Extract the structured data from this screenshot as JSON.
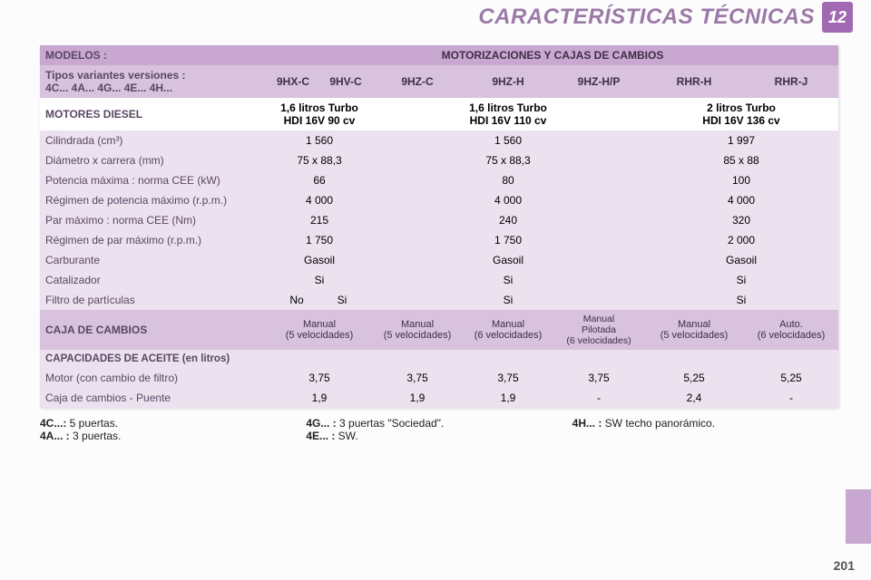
{
  "badge": "12",
  "title": "CARACTERÍSTICAS TÉCNICAS",
  "pagenum": "201",
  "cols": {
    "modelos": "MODELOS :",
    "motorizaciones": "MOTORIZACIONES Y CAJAS DE CAMBIOS",
    "tipos_label": "Tipos variantes versiones :\n4C... 4A... 4G... 4E... 4H...",
    "c1": "9HX-C",
    "c2": "9HV-C",
    "c3": "9HZ-C",
    "c4": "9HZ-H",
    "c5": "9HZ-H/P",
    "c6": "RHR-H",
    "c7": "RHR-J"
  },
  "engines": {
    "label": "MOTORES DIESEL",
    "e1": "1,6 litros Turbo\nHDI 16V 90 cv",
    "e2": "1,6 litros Turbo\nHDI 16V 110 cv",
    "e3": "2 litros Turbo\nHDI 16V 136 cv"
  },
  "rows": [
    {
      "label": "Cilindrada (cm³)",
      "a": "1 560",
      "b": "1 560",
      "c": "1 997"
    },
    {
      "label": "Diámetro x carrera (mm)",
      "a": "75 x 88,3",
      "b": "75 x 88,3",
      "c": "85 x 88"
    },
    {
      "label": "Potencia máxima : norma CEE (kW)",
      "a": "66",
      "b": "80",
      "c": "100"
    },
    {
      "label": "Régimen de potencia máximo (r.p.m.)",
      "a": "4 000",
      "b": "4 000",
      "c": "4 000"
    },
    {
      "label": "Par máximo : norma CEE (Nm)",
      "a": "215",
      "b": "240",
      "c": "320"
    },
    {
      "label": "Régimen de par máximo (r.p.m.)",
      "a": "1 750",
      "b": "1 750",
      "c": "2 000"
    },
    {
      "label": "Carburante",
      "a": "Gasoil",
      "b": "Gasoil",
      "c": "Gasoil"
    },
    {
      "label": "Catalizador",
      "a": "Si",
      "b": "Si",
      "c": "Si"
    }
  ],
  "filtro": {
    "label": "Filtro de partículas",
    "a1": "No",
    "a2": "Si",
    "b": "Si",
    "c": "Si"
  },
  "caja": {
    "label": "CAJA DE CAMBIOS",
    "g1": "Manual\n(5 velocidades)",
    "g2": "Manual\n(5 velocidades)",
    "g3": "Manual\n(6 velocidades)",
    "g4": "Manual\nPilotada\n(6 velocidades)",
    "g5": "Manual\n(5 velocidades)",
    "g6": "Auto.\n(6 velocidades)"
  },
  "cap": {
    "label": "CAPACIDADES DE ACEITE (en litros)",
    "motor": {
      "label": "Motor (con cambio de filtro)",
      "v1": "3,75",
      "v2": "3,75",
      "v3": "3,75",
      "v4": "3,75",
      "v5": "5,25",
      "v6": "5,25"
    },
    "puente": {
      "label": "Caja de cambios - Puente",
      "v1": "1,9",
      "v2": "1,9",
      "v3": "1,9",
      "v4": "-",
      "v5": "2,4",
      "v6": "-"
    }
  },
  "foot": {
    "c4c_k": "4C...:",
    "c4c_v": " 5 puertas.",
    "c4a_k": "4A... :",
    "c4a_v": " 3 puertas.",
    "c4g_k": "4G... :",
    "c4g_v": " 3 puertas \"Sociedad\".",
    "c4e_k": "4E... :",
    "c4e_v": " SW.",
    "c4h_k": "4H... :",
    "c4h_v": " SW techo panorámico."
  }
}
